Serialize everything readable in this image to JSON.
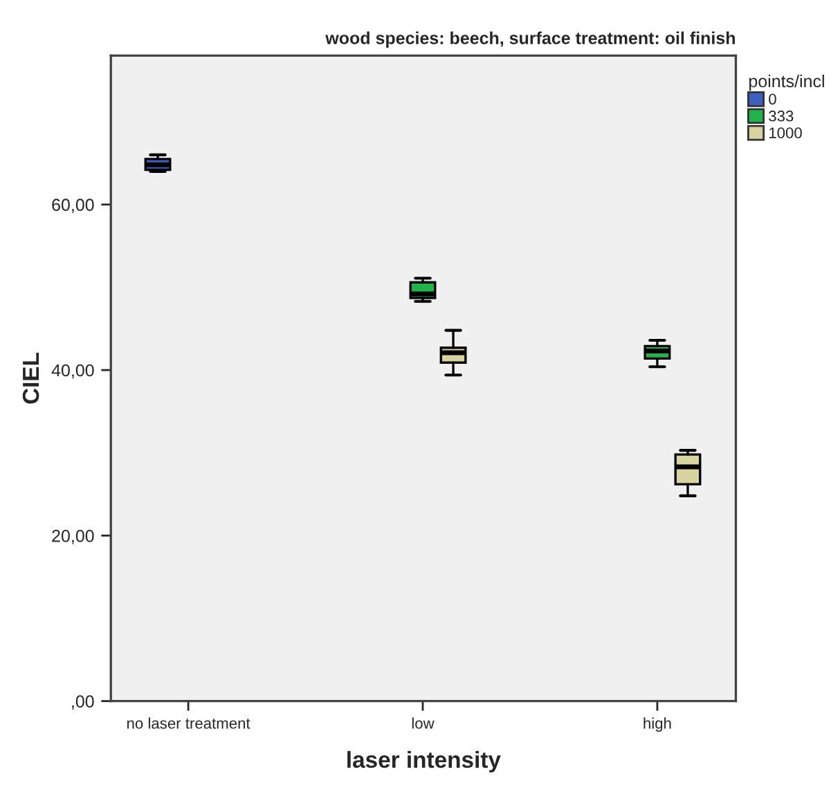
{
  "chart_data": {
    "type": "box",
    "title": "wood species: beech, surface treatment: oil finish",
    "xlabel": "laser intensity",
    "ylabel": "CIEL",
    "legend_title": "points/incl",
    "legend": "right",
    "grid": false,
    "categories": [
      "no laser treatment",
      "low",
      "high"
    ],
    "ylim": [
      0,
      78
    ],
    "yticks": [
      {
        "value": 0,
        "label": ",00"
      },
      {
        "value": 20,
        "label": "20,00"
      },
      {
        "value": 40,
        "label": "40,00"
      },
      {
        "value": 60,
        "label": "60,00"
      }
    ],
    "series": [
      {
        "name": "0",
        "color": "#3c5fc0",
        "boxes": [
          {
            "low": 64.0,
            "q1": 64.2,
            "median": 64.8,
            "q3": 65.5,
            "high": 66.0
          },
          null,
          null
        ]
      },
      {
        "name": "333",
        "color": "#22b34a",
        "boxes": [
          null,
          {
            "low": 48.3,
            "q1": 48.7,
            "median": 49.2,
            "q3": 50.6,
            "high": 51.1
          },
          {
            "low": 40.4,
            "q1": 41.4,
            "median": 42.3,
            "q3": 42.9,
            "high": 43.6
          }
        ]
      },
      {
        "name": "1000",
        "color": "#d9d3a0",
        "boxes": [
          null,
          {
            "low": 39.4,
            "q1": 40.9,
            "median": 42.1,
            "q3": 42.7,
            "high": 44.8
          },
          {
            "low": 24.8,
            "q1": 26.2,
            "median": 28.3,
            "q3": 29.8,
            "high": 30.3
          }
        ]
      }
    ]
  }
}
